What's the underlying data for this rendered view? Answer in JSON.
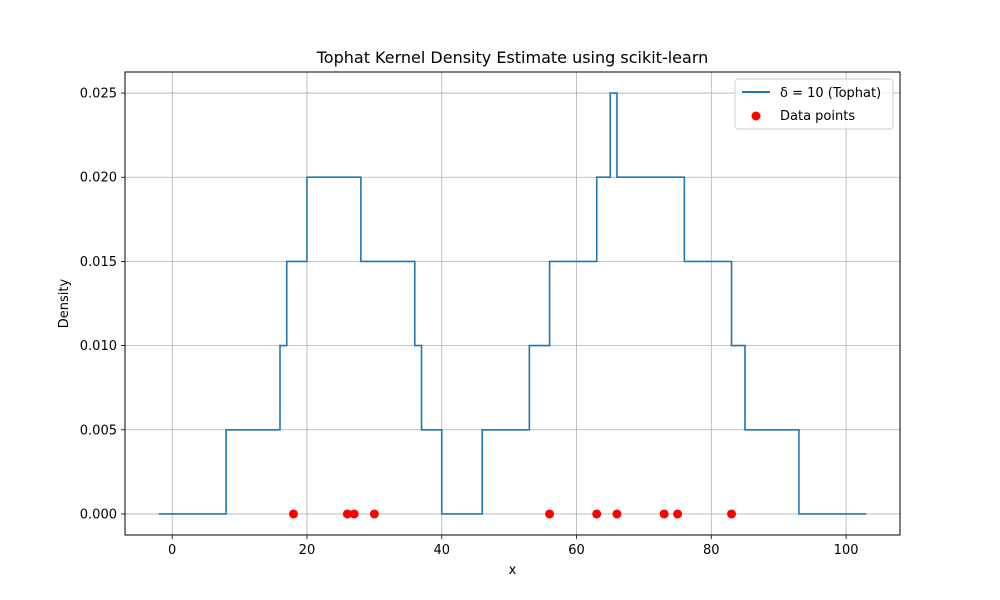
{
  "chart_data": {
    "type": "line",
    "title": "Tophat Kernel Density Estimate using scikit-learn",
    "xlabel": "x",
    "ylabel": "Density",
    "xlim": [
      -7,
      108
    ],
    "ylim": [
      -0.00125,
      0.02625
    ],
    "xticks": [
      0,
      20,
      40,
      60,
      80,
      100
    ],
    "yticks": [
      0.0,
      0.005,
      0.01,
      0.015,
      0.02,
      0.025
    ],
    "xtick_labels": [
      "0",
      "20",
      "40",
      "60",
      "80",
      "100"
    ],
    "ytick_labels": [
      "0.000",
      "0.005",
      "0.010",
      "0.015",
      "0.020",
      "0.025"
    ],
    "grid": true,
    "legend_position": "top-right",
    "series": [
      {
        "name": "δ = 10 (Tophat)",
        "type": "step-line",
        "color": "#1f77b4",
        "x": [
          -2,
          8,
          8,
          16,
          16,
          17,
          17,
          20,
          20,
          28,
          28,
          36,
          36,
          37,
          37,
          40,
          40,
          46,
          46,
          53,
          53,
          56,
          56,
          63,
          63,
          65,
          65,
          66,
          66,
          76,
          76,
          83,
          83,
          85,
          85,
          93,
          93,
          103
        ],
        "y": [
          0,
          0,
          0.005,
          0.005,
          0.01,
          0.01,
          0.015,
          0.015,
          0.02,
          0.02,
          0.015,
          0.015,
          0.01,
          0.01,
          0.005,
          0.005,
          0,
          0,
          0.005,
          0.005,
          0.01,
          0.01,
          0.015,
          0.015,
          0.02,
          0.02,
          0.025,
          0.025,
          0.02,
          0.02,
          0.015,
          0.015,
          0.01,
          0.01,
          0.005,
          0.005,
          0,
          0
        ]
      },
      {
        "name": "Data points",
        "type": "scatter",
        "color": "#ff0000",
        "x": [
          18,
          26,
          27,
          30,
          56,
          63,
          66,
          73,
          75,
          83
        ],
        "y": [
          0,
          0,
          0,
          0,
          0,
          0,
          0,
          0,
          0,
          0
        ]
      }
    ]
  }
}
